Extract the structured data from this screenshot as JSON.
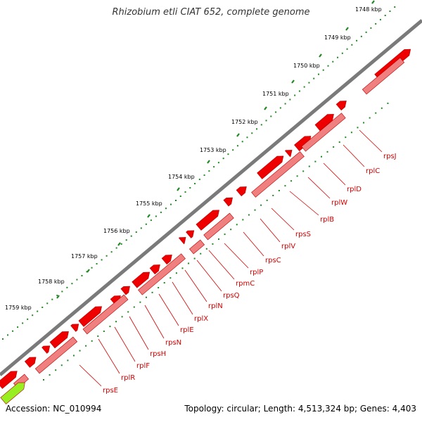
{
  "header": {
    "title": "Rhizobium etli CIAT 652, complete genome"
  },
  "footer": {
    "accession": "Accession: NC_010994",
    "info": "Topology: circular; Length: 4,513,324 bp; Genes: 4,403"
  },
  "scale_labels": [
    "1748 kbp",
    "1749 kbp",
    "1750 kbp",
    "1751 kbp",
    "1752 kbp",
    "1753 kbp",
    "1754 kbp",
    "1755 kbp",
    "1756 kbp",
    "1757 kbp",
    "1758 kbp",
    "1759 kbp"
  ],
  "genes": [
    "rpsJ",
    "rplC",
    "rplD",
    "rplW",
    "rplB",
    "rpsS",
    "rplV",
    "rpsC",
    "rplP",
    "rpmC",
    "rpsQ",
    "rplN",
    "rplX",
    "rplE",
    "rpsN",
    "rpsH",
    "rplF",
    "rplR",
    "rpsE"
  ],
  "colors": {
    "gene_forward": "#ee0000",
    "gene_reverse": "#f08080",
    "other_gene": "#99ee22",
    "backbone": "#7a7a7a",
    "tick": "#228822",
    "label": "#d40000"
  }
}
